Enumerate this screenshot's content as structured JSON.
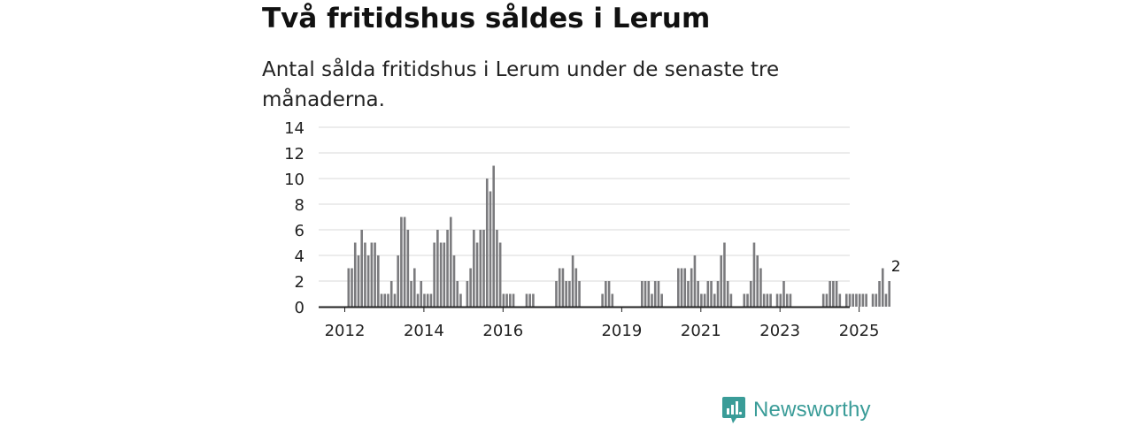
{
  "title": "Två fritidshus såldes i Lerum",
  "subtitle": "Antal sålda fritidshus i Lerum under de senaste tre månaderna.",
  "brand": {
    "name": "Newsworthy",
    "icon": "newsworthy-logo-icon",
    "color": "#3a9c98"
  },
  "chart_data": {
    "type": "bar",
    "title": "Två fritidshus såldes i Lerum",
    "subtitle": "Antal sålda fritidshus i Lerum under de senaste tre månaderna.",
    "xlabel": "",
    "ylabel": "",
    "ylim": [
      0,
      14
    ],
    "yticks": [
      0,
      2,
      4,
      6,
      8,
      10,
      12,
      14
    ],
    "grid": true,
    "series_start_month": "2012-01",
    "xticks": [
      {
        "label": "2012",
        "year": 2012
      },
      {
        "label": "2014",
        "year": 2014
      },
      {
        "label": "2016",
        "year": 2016
      },
      {
        "label": "2019",
        "year": 2019
      },
      {
        "label": "2021",
        "year": 2021
      },
      {
        "label": "2023",
        "year": 2023
      },
      {
        "label": "2025",
        "year": 2025
      }
    ],
    "bar_color": "#7b7b7e",
    "highlight_color": "#2a9d99",
    "highlight": {
      "month": "2025-11",
      "value": 2,
      "label": "2"
    },
    "values": [
      3,
      3,
      5,
      4,
      6,
      5,
      4,
      5,
      5,
      4,
      1,
      1,
      1,
      2,
      1,
      4,
      7,
      7,
      6,
      2,
      3,
      1,
      2,
      1,
      1,
      1,
      5,
      6,
      5,
      5,
      6,
      7,
      4,
      2,
      1,
      0,
      2,
      3,
      6,
      5,
      6,
      6,
      10,
      9,
      11,
      6,
      5,
      1,
      1,
      1,
      1,
      0,
      0,
      0,
      1,
      1,
      1,
      0,
      0,
      0,
      0,
      0,
      0,
      2,
      3,
      3,
      2,
      2,
      4,
      3,
      2,
      0,
      0,
      0,
      0,
      0,
      0,
      1,
      2,
      2,
      1,
      0,
      0,
      0,
      0,
      0,
      0,
      0,
      0,
      2,
      2,
      2,
      1,
      2,
      2,
      1,
      0,
      0,
      0,
      0,
      3,
      3,
      3,
      2,
      3,
      4,
      2,
      1,
      1,
      2,
      2,
      1,
      2,
      4,
      5,
      2,
      1,
      0,
      0,
      0,
      1,
      1,
      2,
      5,
      4,
      3,
      1,
      1,
      1,
      0,
      1,
      1,
      2,
      1,
      1,
      0,
      0,
      0,
      0,
      0,
      0,
      0,
      0,
      0,
      1,
      1,
      2,
      2,
      2,
      1,
      0,
      1,
      1,
      1,
      1,
      1,
      1,
      1,
      0,
      1,
      1,
      2,
      3,
      1,
      2
    ]
  }
}
